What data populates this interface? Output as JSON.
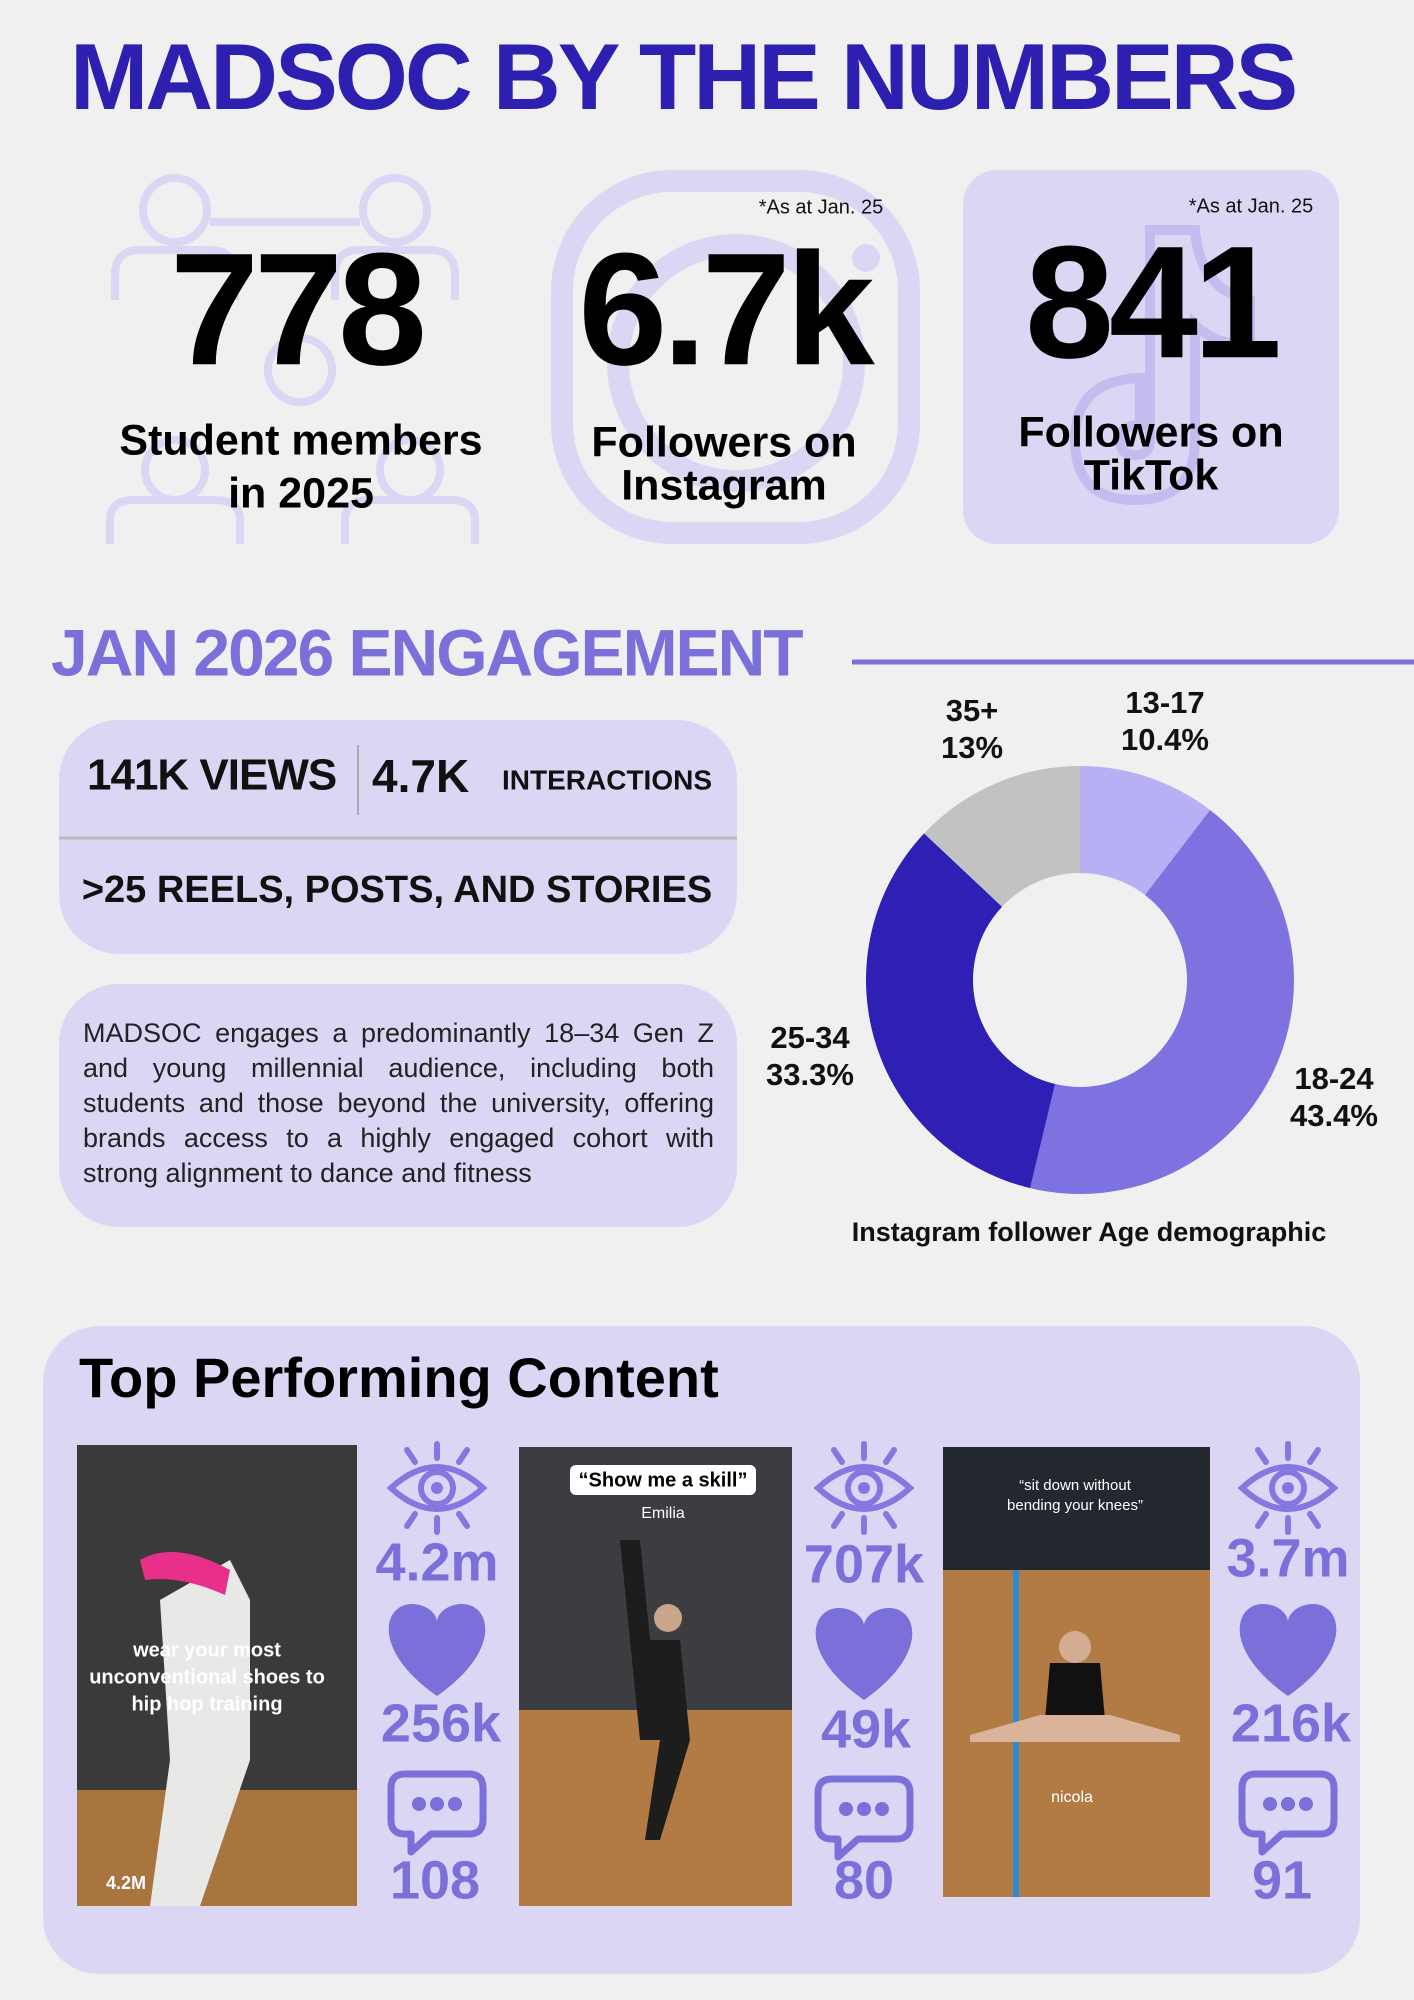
{
  "header": {
    "title": "MADSOC BY THE NUMBERS"
  },
  "stats": [
    {
      "value": "778",
      "label_lines": [
        "Student members",
        "in 2025"
      ]
    },
    {
      "note": "*As at Jan. 25",
      "value": "6.7k",
      "label_lines": [
        "Followers on",
        "Instagram"
      ]
    },
    {
      "note": "*As at Jan. 25",
      "value": "841",
      "label_lines": [
        "Followers on",
        "TikTok"
      ]
    }
  ],
  "engagement": {
    "title": "JAN 2026 ENGAGEMENT",
    "views": "141K VIEWS",
    "interactions_value": "4.7K",
    "interactions_label": "INTERACTIONS",
    "content": ">25 REELS, POSTS, AND STORIES",
    "description": "MADSOC engages a predominantly 18–34 Gen Z and young millennial audience, including both students and those beyond the university, offering brands access to a highly engaged cohort with strong alignment to dance and fitness"
  },
  "chart_data": {
    "type": "donut",
    "title": "Instagram follower Age demographic",
    "categories": [
      "13-17",
      "18-24",
      "25-34",
      "35+"
    ],
    "values": [
      10.4,
      43.4,
      33.3,
      13
    ],
    "value_labels": [
      "10.4%",
      "43.4%",
      "33.3%",
      "13%"
    ],
    "colors": [
      "#b8b0f5",
      "#7e72e0",
      "#2e1fb5",
      "#c2c2c2"
    ]
  },
  "top_content": {
    "title": "Top Performing Content",
    "posts": [
      {
        "caption_lines": [
          "wear your most",
          "unconventional shoes to",
          "hip hop training"
        ],
        "badge": "4.2M",
        "views": "4.2m",
        "likes": "256k",
        "comments": 108
      },
      {
        "caption_lines": [
          "“Show me a skill”"
        ],
        "name": "Emilia",
        "views": "707k",
        "likes": "49k",
        "comments": 80
      },
      {
        "caption_lines": [
          "“sit down without",
          "bending your knees”"
        ],
        "name": "nicola",
        "views": "3.7m",
        "likes": "216k",
        "comments": 91
      }
    ]
  }
}
